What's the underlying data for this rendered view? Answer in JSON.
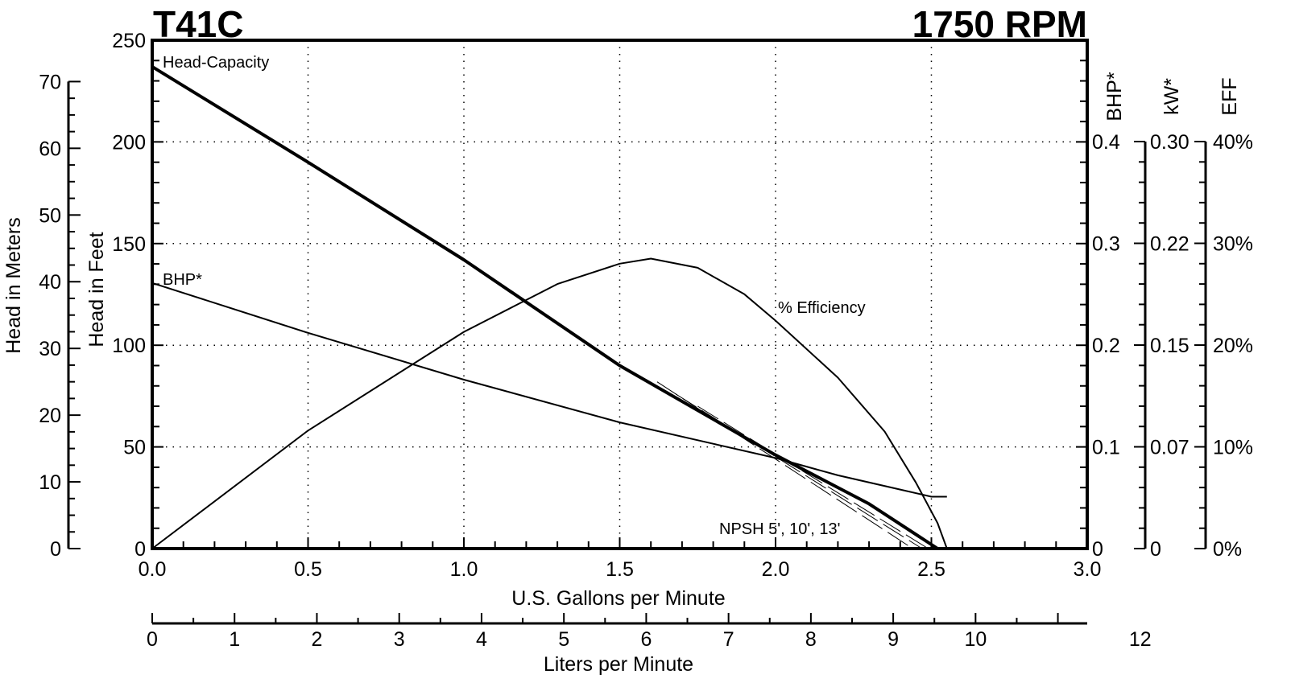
{
  "chart_data": {
    "type": "line",
    "title": "T41C",
    "subtitle": "1750 RPM",
    "xlabel": "U.S. Gallons per Minute",
    "x2label": "Liters per Minute",
    "ylabel": "Head in Feet",
    "ylabel_meters": "Head in Meters",
    "ylabel_bhp": "BHP*",
    "ylabel_kw": "kW*",
    "ylabel_eff": "EFF",
    "xlim": [
      0,
      3.0
    ],
    "ylim": [
      0,
      250
    ],
    "bhp_lim": [
      0,
      0.4
    ],
    "eff_lim": [
      0,
      40
    ],
    "grid": true,
    "x_ticks": [
      "0.0",
      "0.5",
      "1.0",
      "1.5",
      "2.0",
      "2.5",
      "3.0"
    ],
    "y_ticks": [
      "0",
      "50",
      "100",
      "150",
      "200",
      "250"
    ],
    "meter_ticks": [
      "0",
      "10",
      "20",
      "30",
      "40",
      "50",
      "60",
      "70"
    ],
    "liter_ticks": [
      "0",
      "1",
      "2",
      "3",
      "4",
      "5",
      "6",
      "7",
      "8",
      "9",
      "10",
      "12"
    ],
    "bhp_ticks": [
      "0",
      "0.1",
      "0.2",
      "0.3",
      "0.4"
    ],
    "kw_ticks": [
      "0",
      "0.07",
      "0.15",
      "0.22",
      "0.30"
    ],
    "eff_ticks": [
      "0%",
      "10%",
      "20%",
      "30%",
      "40%"
    ],
    "series": [
      {
        "name": "Head-Capacity",
        "axis": "feet",
        "x": [
          0,
          0.5,
          1.0,
          1.5,
          2.0,
          2.3,
          2.52
        ],
        "y": [
          237,
          190,
          142,
          90,
          46,
          22,
          0
        ]
      },
      {
        "name": "BHP*",
        "axis": "bhp",
        "x": [
          0,
          0.5,
          1.0,
          1.5,
          1.8,
          2.0,
          2.2,
          2.4,
          2.5,
          2.55
        ],
        "y": [
          0.261,
          0.212,
          0.166,
          0.124,
          0.103,
          0.089,
          0.072,
          0.058,
          0.051,
          0.051
        ]
      },
      {
        "name": "% Efficiency",
        "axis": "eff",
        "x": [
          0,
          0.5,
          1.0,
          1.3,
          1.5,
          1.6,
          1.75,
          1.9,
          2.0,
          2.2,
          2.35,
          2.45,
          2.52,
          2.55
        ],
        "y": [
          0,
          11.6,
          21.3,
          26.0,
          28.0,
          28.5,
          27.6,
          25.0,
          22.4,
          16.8,
          11.5,
          6.5,
          2.5,
          0
        ]
      },
      {
        "name": "NPSH 5'",
        "axis": "feet",
        "dashed": true,
        "x": [
          1.62,
          2.44
        ],
        "y": [
          82,
          0
        ]
      },
      {
        "name": "NPSH 10'",
        "axis": "feet",
        "dashed": true,
        "x": [
          1.68,
          2.47
        ],
        "y": [
          76,
          0
        ]
      },
      {
        "name": "NPSH 13'",
        "axis": "feet",
        "dashed": true,
        "x": [
          1.75,
          2.49
        ],
        "y": [
          70,
          0
        ]
      }
    ],
    "annotations": [
      "Head-Capacity",
      "BHP*",
      "% Efficiency",
      "NPSH 5', 10', 13'"
    ]
  }
}
